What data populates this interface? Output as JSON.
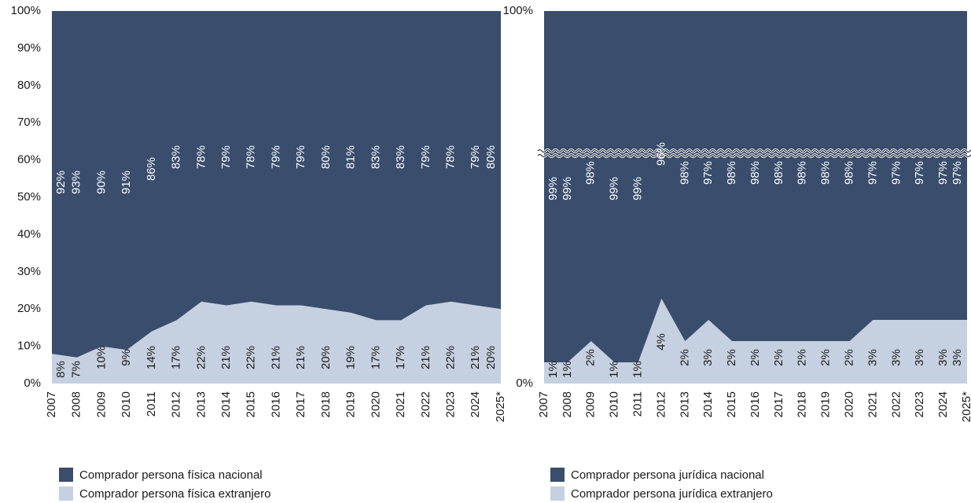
{
  "colors": {
    "nacional": "#3a4d6d",
    "extranjero": "#c5d0e0",
    "label_on_dark": "#ffffff",
    "label_on_light": "#1a1a1a"
  },
  "chart_data": [
    {
      "type": "area",
      "stacked": true,
      "percent": true,
      "categories": [
        "2007",
        "2008",
        "2009",
        "2010",
        "2011",
        "2012",
        "2013",
        "2014",
        "2015",
        "2016",
        "2017",
        "2018",
        "2019",
        "2020",
        "2021",
        "2022",
        "2023",
        "2024",
        "2025*"
      ],
      "y_ticks": [
        "0%",
        "10%",
        "20%",
        "30%",
        "40%",
        "50%",
        "60%",
        "70%",
        "80%",
        "90%",
        "100%"
      ],
      "ylim": [
        0,
        100
      ],
      "series": [
        {
          "name": "Comprador persona física extranjero",
          "values": [
            8,
            7,
            10,
            9,
            14,
            17,
            22,
            21,
            22,
            21,
            21,
            20,
            19,
            17,
            17,
            21,
            22,
            21,
            20
          ],
          "labels": [
            "8%",
            "7%",
            "10%",
            "9%",
            "14%",
            "17%",
            "22%",
            "21%",
            "22%",
            "21%",
            "21%",
            "20%",
            "19%",
            "17%",
            "17%",
            "21%",
            "22%",
            "21%",
            "20%"
          ]
        },
        {
          "name": "Comprador persona física nacional",
          "values": [
            92,
            93,
            90,
            91,
            86,
            83,
            78,
            79,
            78,
            79,
            79,
            80,
            81,
            83,
            83,
            79,
            78,
            79,
            80
          ],
          "labels": [
            "92%",
            "93%",
            "90%",
            "91%",
            "86%",
            "83%",
            "78%",
            "79%",
            "78%",
            "79%",
            "79%",
            "80%",
            "81%",
            "83%",
            "83%",
            "79%",
            "78%",
            "79%",
            "80%"
          ]
        }
      ],
      "legend_position": "bottom-left"
    },
    {
      "type": "area",
      "stacked": true,
      "percent": true,
      "axis_break": true,
      "categories": [
        "2007",
        "2008",
        "2009",
        "2010",
        "2011",
        "2012",
        "2013",
        "2014",
        "2015",
        "2016",
        "2017",
        "2018",
        "2019",
        "2020",
        "2021",
        "2022",
        "2023",
        "2024",
        "2025*"
      ],
      "y_ticks": [
        "0%",
        "100%"
      ],
      "ylim": [
        0,
        100
      ],
      "series": [
        {
          "name": "Comprador persona jurídica extranjero",
          "values": [
            1,
            1,
            2,
            1,
            1,
            4,
            2,
            3,
            2,
            2,
            2,
            2,
            2,
            2,
            3,
            3,
            3,
            3,
            3
          ],
          "labels": [
            "1%",
            "1%",
            "2%",
            "1%",
            "1%",
            "4%",
            "2%",
            "3%",
            "2%",
            "2%",
            "2%",
            "2%",
            "2%",
            "2%",
            "3%",
            "3%",
            "3%",
            "3%",
            "3%"
          ]
        },
        {
          "name": "Comprador persona jurídica nacional",
          "values": [
            99,
            99,
            98,
            99,
            99,
            96,
            98,
            97,
            98,
            98,
            98,
            98,
            98,
            98,
            97,
            97,
            97,
            97,
            97
          ],
          "labels": [
            "99%",
            "99%",
            "98%",
            "99%",
            "99%",
            "96%",
            "98%",
            "97%",
            "98%",
            "98%",
            "98%",
            "98%",
            "98%",
            "98%",
            "97%",
            "97%",
            "97%",
            "97%",
            "97%"
          ]
        }
      ],
      "legend_position": "bottom-left"
    }
  ],
  "legend": {
    "left": [
      "Comprador persona física nacional",
      "Comprador persona física extranjero"
    ],
    "right": [
      "Comprador persona jurídica nacional",
      "Comprador persona jurídica extranjero"
    ]
  }
}
